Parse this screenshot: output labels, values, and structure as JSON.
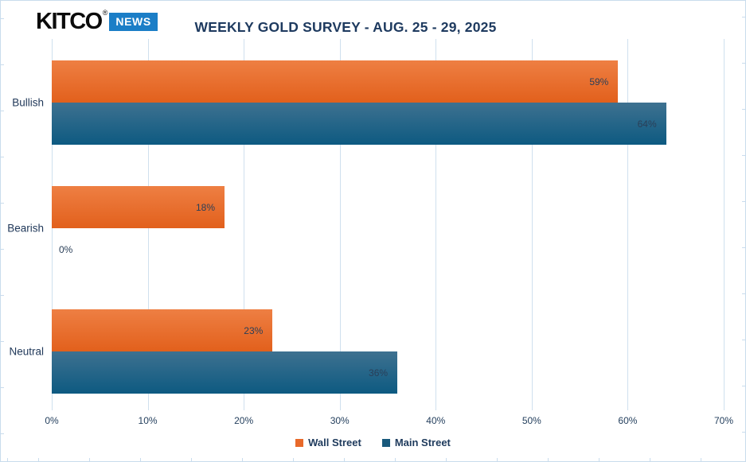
{
  "brand": {
    "kitco": "KITCO",
    "registered": "®",
    "news": "NEWS"
  },
  "colors": {
    "wall_street_gradient": [
      "#ee7f43",
      "#e2601c"
    ],
    "main_street_gradient": [
      "#3e7190",
      "#0d5a81"
    ],
    "legend_swatches": [
      "#e8692a",
      "#19597c"
    ],
    "grid": "#cfe0ee",
    "frame": "#c9dced",
    "title_text": "#1e3a5f",
    "news_badge_bg": "#1b7ec7"
  },
  "chart_data": {
    "type": "bar",
    "orientation": "horizontal",
    "title": "WEEKLY GOLD SURVEY - AUG. 25 - 29, 2025",
    "categories": [
      "Bullish",
      "Bearish",
      "Neutral"
    ],
    "series": [
      {
        "name": "Wall Street",
        "values": [
          59,
          18,
          23
        ]
      },
      {
        "name": "Main Street",
        "values": [
          64,
          0,
          36
        ]
      }
    ],
    "display_values": [
      [
        "59%",
        "18%",
        "23%"
      ],
      [
        "64%",
        "0%",
        "36%"
      ]
    ],
    "x_ticks": [
      "0%",
      "10%",
      "20%",
      "30%",
      "40%",
      "50%",
      "60%",
      "70%"
    ],
    "xlim": [
      0,
      70
    ],
    "grid": "vertical",
    "legend_position": "bottom-center"
  }
}
